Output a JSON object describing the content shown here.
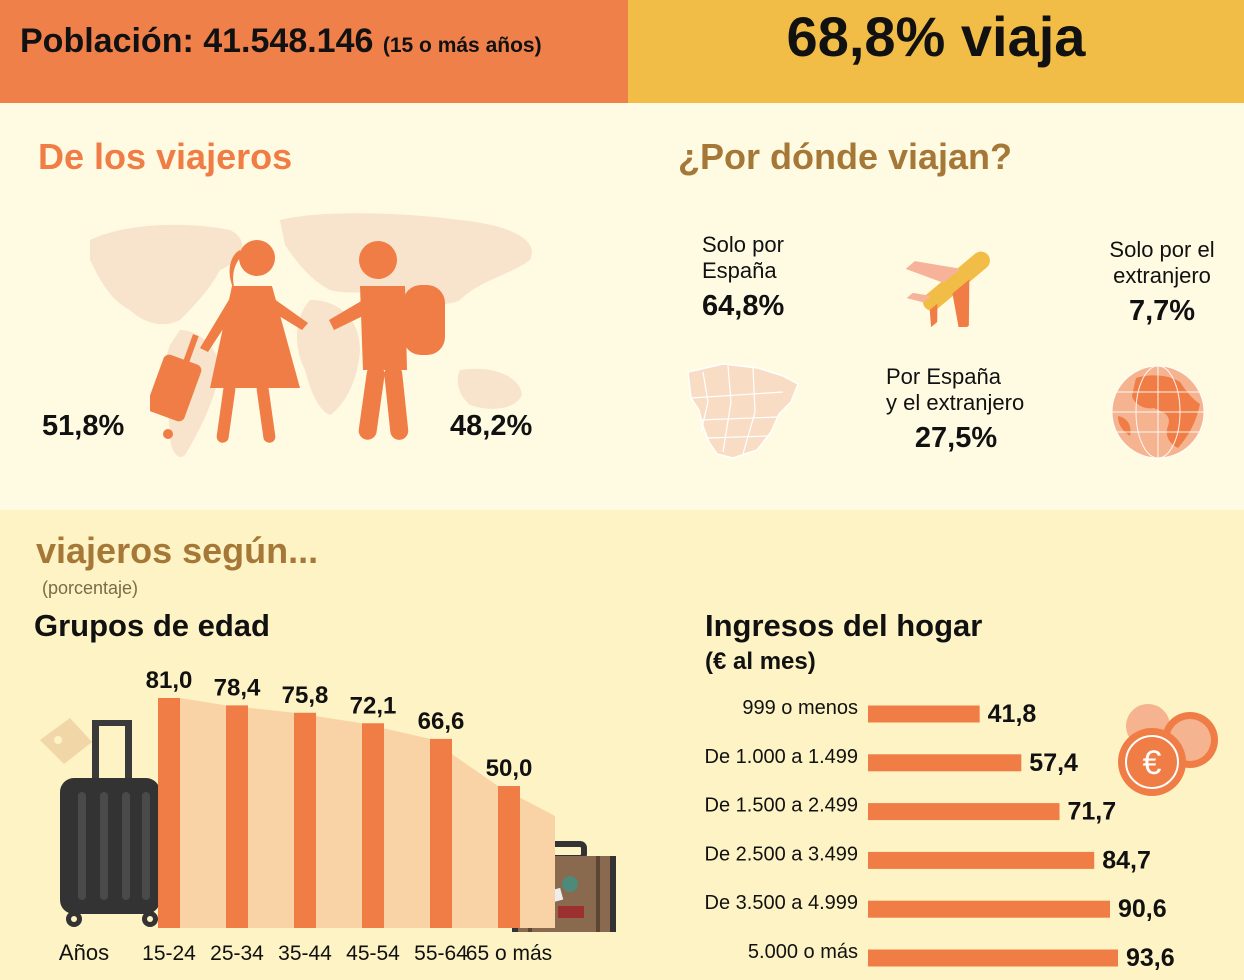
{
  "header": {
    "population_label": "Población: 41.548.146",
    "population_note": "(15 o más años)",
    "travel_share": "68,8% viaja"
  },
  "travelers": {
    "title": "De los viajeros",
    "female_pct": "51,8%",
    "male_pct": "48,2%"
  },
  "where": {
    "title": "¿Por dónde viajan?",
    "spain_only_label_1": "Solo por",
    "spain_only_label_2": "España",
    "spain_only_pct": "64,8%",
    "abroad_only_label_1": "Solo por el",
    "abroad_only_label_2": "extranjero",
    "abroad_only_pct": "7,7%",
    "both_label_1": "Por España",
    "both_label_2": "y el extranjero",
    "both_pct": "27,5%"
  },
  "section": {
    "title": "viajeros según...",
    "subtitle": "(porcentaje)"
  },
  "colors": {
    "accent_orange": "#ef7d45",
    "accent_yellow": "#f2bd47",
    "bar_shadow": "#f9d3a6",
    "brown": "#a67838"
  },
  "chart_data": [
    {
      "type": "bar",
      "title": "Grupos de edad",
      "xlabel": "Años",
      "categories": [
        "15-24",
        "25-34",
        "35-44",
        "45-54",
        "55-64",
        "65 o más"
      ],
      "values": [
        81.0,
        78.4,
        75.8,
        72.1,
        66.6,
        50.0
      ],
      "value_labels": [
        "81,0",
        "78,4",
        "75,8",
        "72,1",
        "66,6",
        "50,0"
      ],
      "ylim": [
        0,
        81.0
      ]
    },
    {
      "type": "bar",
      "orientation": "horizontal",
      "title": "Ingresos del hogar",
      "subtitle": "(€ al mes)",
      "categories": [
        "999 o menos",
        "De 1.000 a 1.499",
        "De 1.500 a 2.499",
        "De 2.500 a 3.499",
        "De 3.500 a 4.999",
        "5.000 o más"
      ],
      "values": [
        41.8,
        57.4,
        71.7,
        84.7,
        90.6,
        93.6
      ],
      "value_labels": [
        "41,8",
        "57,4",
        "71,7",
        "84,7",
        "90,6",
        "93,6"
      ],
      "xlim": [
        0,
        93.6
      ]
    }
  ]
}
